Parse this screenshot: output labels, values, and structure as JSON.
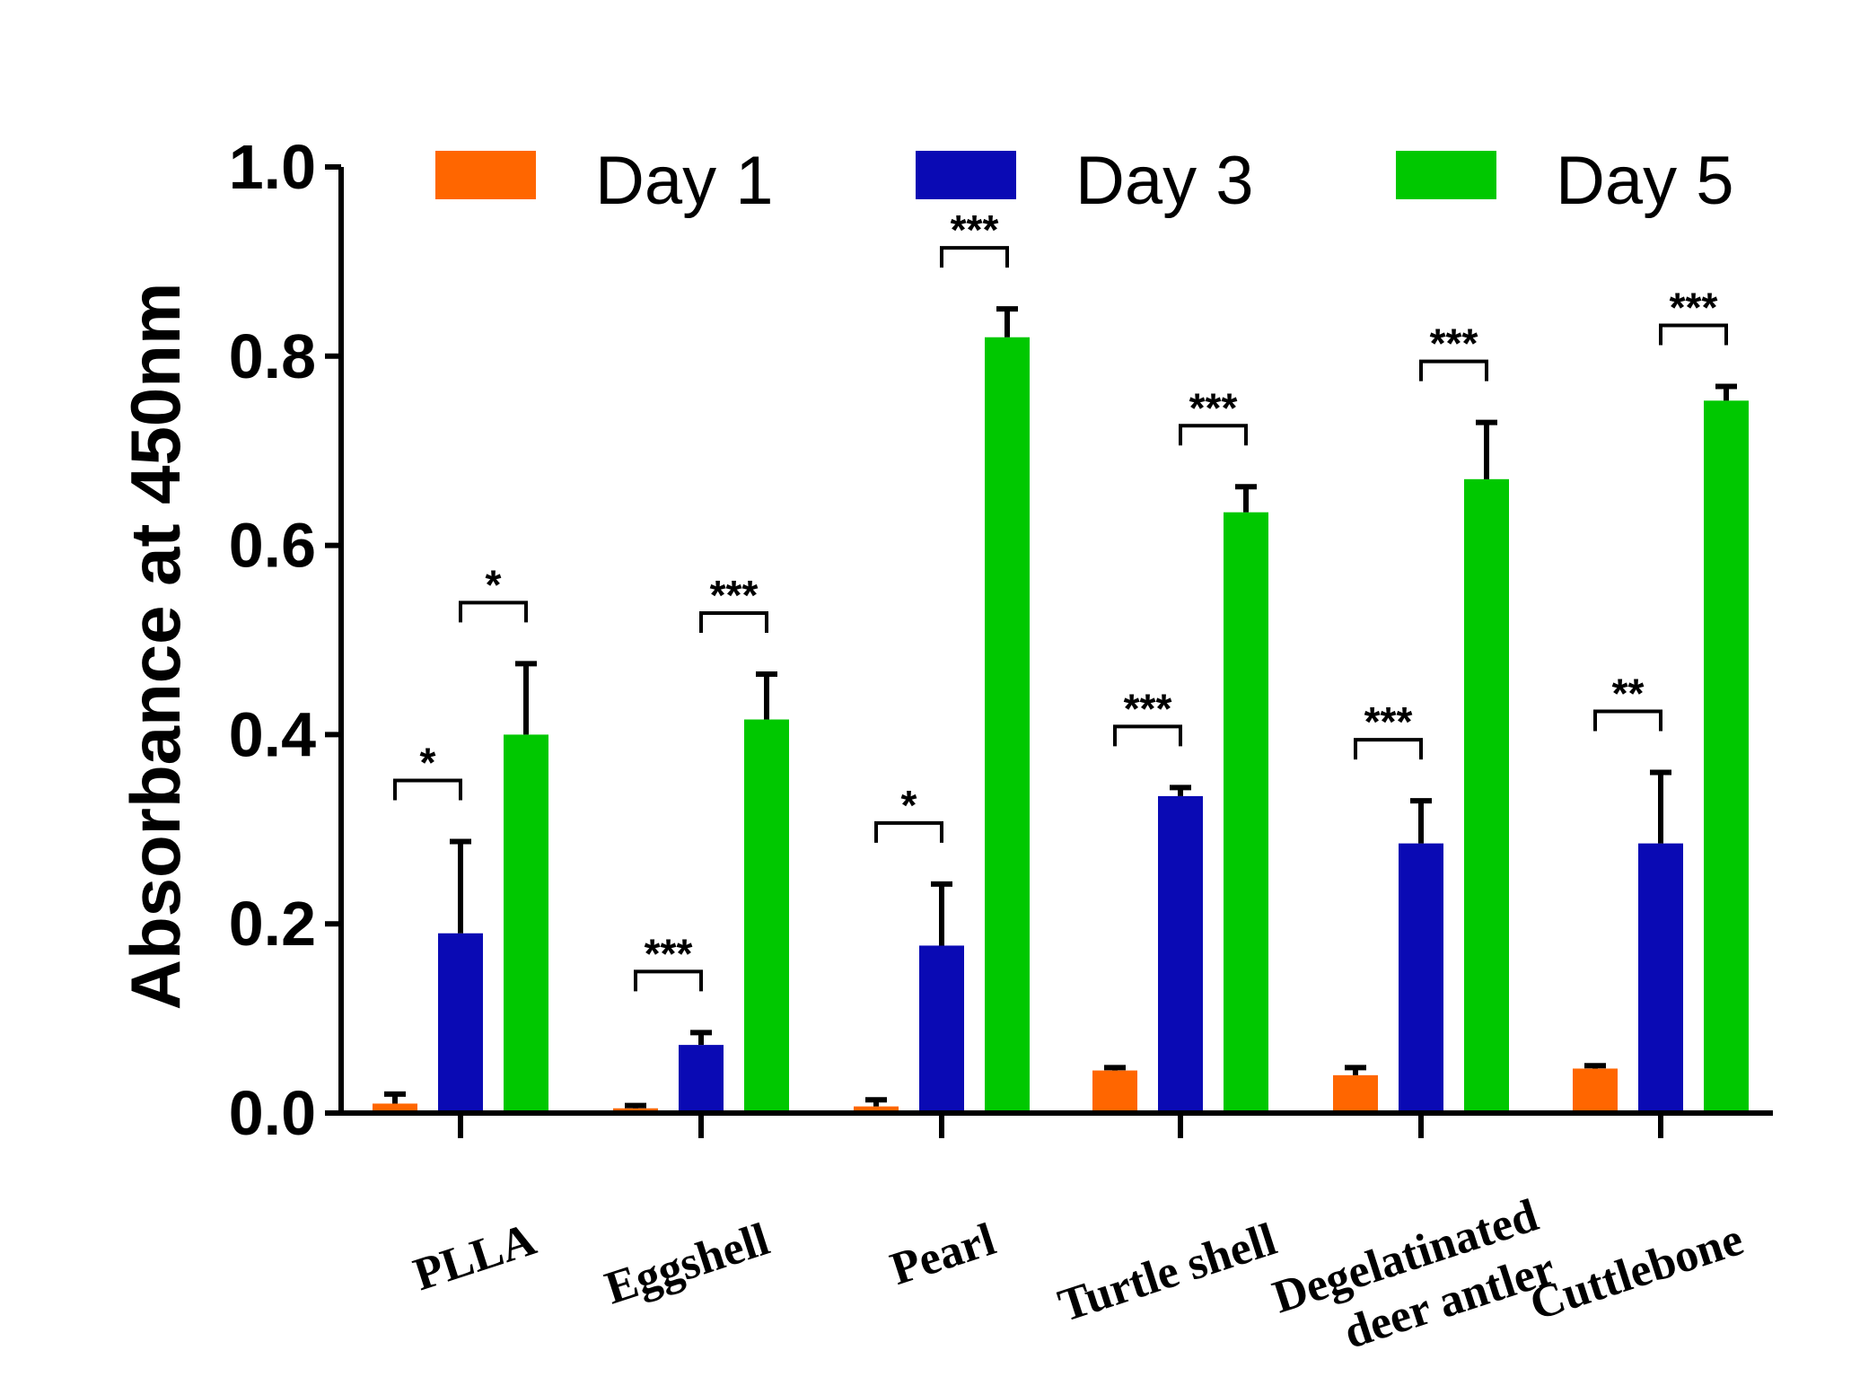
{
  "chart_data": {
    "type": "bar",
    "title": "",
    "xlabel": "",
    "ylabel": "Absorbance at 450nm",
    "ylim": [
      0,
      1.0
    ],
    "yticks": [
      "0.0",
      "0.2",
      "0.4",
      "0.6",
      "0.8",
      "1.0"
    ],
    "categories": [
      [
        "PLLA"
      ],
      [
        "Eggshell"
      ],
      [
        "Pearl"
      ],
      [
        "Turtle shell"
      ],
      [
        "Degelatinated",
        "deer antler"
      ],
      [
        "Cuttlebone"
      ]
    ],
    "series": [
      {
        "name": "Day 1",
        "color": "#ff6600",
        "values": [
          0.01,
          0.005,
          0.007,
          0.045,
          0.04,
          0.047
        ],
        "errors": [
          0.01,
          0.003,
          0.007,
          0.003,
          0.008,
          0.003
        ]
      },
      {
        "name": "Day 3",
        "color": "#0a0ab4",
        "values": [
          0.19,
          0.072,
          0.177,
          0.335,
          0.285,
          0.285
        ],
        "errors": [
          0.097,
          0.013,
          0.065,
          0.009,
          0.045,
          0.075
        ]
      },
      {
        "name": "Day 5",
        "color": "#00c800",
        "values": [
          0.4,
          0.416,
          0.82,
          0.635,
          0.67,
          0.753
        ],
        "errors": [
          0.075,
          0.048,
          0.03,
          0.027,
          0.06,
          0.015
        ]
      }
    ],
    "significance": [
      {
        "category": 0,
        "pair": [
          0,
          1
        ],
        "label": "*"
      },
      {
        "category": 0,
        "pair": [
          1,
          2
        ],
        "label": "*"
      },
      {
        "category": 1,
        "pair": [
          0,
          1
        ],
        "label": "***"
      },
      {
        "category": 1,
        "pair": [
          1,
          2
        ],
        "label": "***"
      },
      {
        "category": 2,
        "pair": [
          0,
          1
        ],
        "label": "*"
      },
      {
        "category": 2,
        "pair": [
          1,
          2
        ],
        "label": "***"
      },
      {
        "category": 3,
        "pair": [
          0,
          1
        ],
        "label": "***"
      },
      {
        "category": 3,
        "pair": [
          1,
          2
        ],
        "label": "***"
      },
      {
        "category": 4,
        "pair": [
          0,
          1
        ],
        "label": "***"
      },
      {
        "category": 4,
        "pair": [
          1,
          2
        ],
        "label": "***"
      },
      {
        "category": 5,
        "pair": [
          0,
          1
        ],
        "label": "**"
      },
      {
        "category": 5,
        "pair": [
          1,
          2
        ],
        "label": "***"
      }
    ],
    "legend": {
      "position": "top",
      "entries": [
        "Day 1",
        "Day 3",
        "Day 5"
      ]
    },
    "grid": false
  }
}
